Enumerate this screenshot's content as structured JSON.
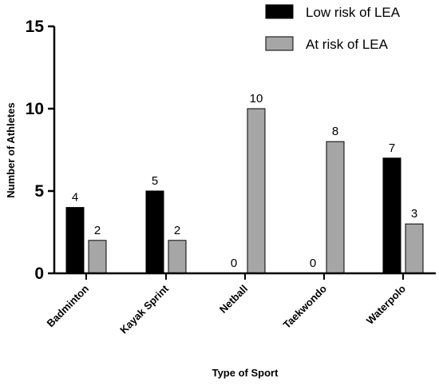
{
  "chart_data": {
    "type": "bar",
    "title": "",
    "xlabel": "Type of Sport",
    "ylabel": "Number of Athletes",
    "ylim": [
      0,
      15
    ],
    "yticks": [
      0,
      5,
      10,
      15
    ],
    "categories": [
      "Badminton",
      "Kayak Sprint",
      "Netball",
      "Taekwondo",
      "Waterpolo"
    ],
    "series": [
      {
        "name": "Low risk of LEA",
        "values": [
          4,
          5,
          0,
          0,
          7
        ],
        "color": "#000000"
      },
      {
        "name": "At risk of LEA",
        "values": [
          2,
          2,
          10,
          8,
          3
        ],
        "color": "#a6a6a6"
      }
    ],
    "data_labels": true,
    "legend_position": "top-right",
    "grid": false
  }
}
